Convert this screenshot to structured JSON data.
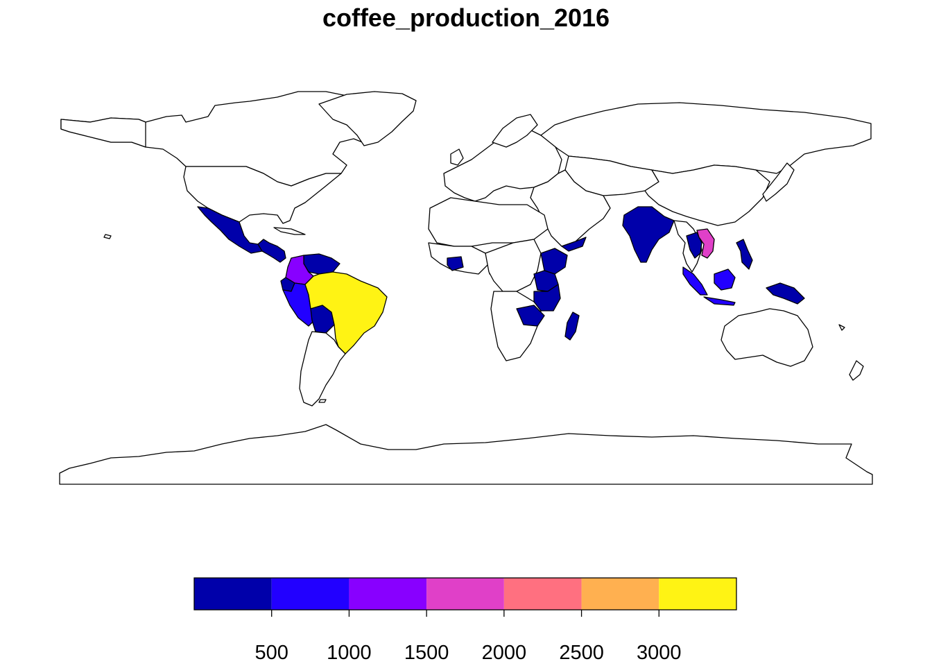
{
  "title": "coffee_production_2016",
  "chart_data": {
    "type": "choropleth",
    "variable": "coffee_production_2016",
    "legend": {
      "placement": "bottom",
      "breaks": [
        0,
        500,
        1000,
        1500,
        2000,
        2500,
        3000,
        3500
      ],
      "tick_labels": [
        "500",
        "1000",
        "1500",
        "2000",
        "2500",
        "3000"
      ],
      "tick_values": [
        500,
        1000,
        1500,
        2000,
        2500,
        3000
      ],
      "colors": [
        "#0000AA",
        "#2200FF",
        "#8800FF",
        "#E040C8",
        "#FF7080",
        "#FFB050",
        "#FFF314"
      ]
    },
    "countries_colored": [
      {
        "name": "Brazil",
        "value": 3277
      },
      {
        "name": "Vietnam",
        "value": 1650
      },
      {
        "name": "Colombia",
        "value": 1300
      },
      {
        "name": "Indonesia",
        "value": 740
      },
      {
        "name": "Peru",
        "value": 600
      },
      {
        "name": "Mexico",
        "value": 270
      },
      {
        "name": "Ethiopia",
        "value": 400
      },
      {
        "name": "India",
        "value": 350
      },
      {
        "name": "Uganda",
        "value": 350
      },
      {
        "name": "Guatemala",
        "value": 230
      },
      {
        "name": "Honduras",
        "value": 350
      },
      {
        "name": "Nicaragua",
        "value": 160
      },
      {
        "name": "Ecuador",
        "value": 40
      },
      {
        "name": "Bolivia",
        "value": 10
      },
      {
        "name": "Venezuela",
        "value": 30
      },
      {
        "name": "Kenya",
        "value": 50
      },
      {
        "name": "Tanzania",
        "value": 60
      },
      {
        "name": "Madagascar",
        "value": 10
      },
      {
        "name": "Cote d'Ivoire",
        "value": 100
      },
      {
        "name": "Cameroon",
        "value": 30
      },
      {
        "name": "Yemen",
        "value": 10
      },
      {
        "name": "Thailand",
        "value": 30
      },
      {
        "name": "Laos",
        "value": 30
      },
      {
        "name": "Philippines",
        "value": 10
      },
      {
        "name": "Papua New Guinea",
        "value": 50
      }
    ]
  }
}
